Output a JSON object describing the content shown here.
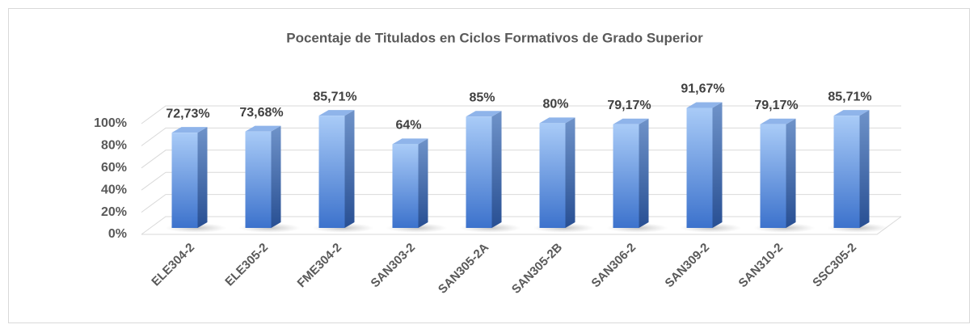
{
  "chart_data": {
    "type": "bar",
    "title": "Pocentaje de Titulados en Ciclos Formativos de Grado Superior",
    "categories": [
      "ELE304-2",
      "ELE305-2",
      "FME304-2",
      "SAN303-2",
      "SAN305-2A",
      "SAN305-2B",
      "SAN306-2",
      "SAN309-2",
      "SAN310-2",
      "SSC305-2"
    ],
    "values": [
      72.73,
      73.68,
      85.71,
      64,
      85,
      80,
      79.17,
      91.67,
      79.17,
      85.71
    ],
    "value_labels": [
      "72,73%",
      "73,68%",
      "85,71%",
      "64%",
      "85%",
      "80%",
      "79,17%",
      "91,67%",
      "79,17%",
      "85,71%"
    ],
    "color": "#4a7fd6",
    "ylim": [
      0,
      100
    ],
    "yticks": [
      {
        "value": 0,
        "label": "0%"
      },
      {
        "value": 20,
        "label": "20%"
      },
      {
        "value": 40,
        "label": "40%"
      },
      {
        "value": 60,
        "label": "60%"
      },
      {
        "value": 80,
        "label": "80%"
      },
      {
        "value": 100,
        "label": "100%"
      }
    ],
    "grid": true
  }
}
